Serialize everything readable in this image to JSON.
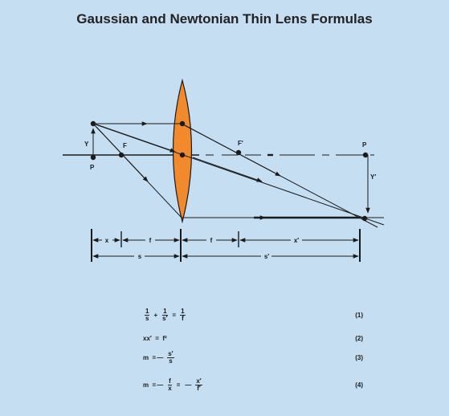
{
  "title": "Gaussian and Newtonian Thin Lens Formulas",
  "colors": {
    "background": "#c6def1",
    "lens": "#f08a2c",
    "ink": "#1a1a1a"
  },
  "diagram": {
    "labels": {
      "object_height": "Y",
      "object_point": "P",
      "front_focus": "F",
      "rear_focus": "F′",
      "image_point": "P",
      "image_height": "Y′"
    },
    "dimensions": {
      "x": "x",
      "f1": "f",
      "f2": "f",
      "x_prime": "x′",
      "s": "s",
      "s_prime": "s′"
    }
  },
  "formulas": [
    {
      "number": "(1)",
      "parts": [
        "1",
        "s",
        "+",
        "1",
        "s′",
        "=",
        "1",
        "f"
      ]
    },
    {
      "number": "(2)",
      "text": "xx′  =  f²"
    },
    {
      "number": "(3)",
      "lhs": "m  =",
      "sign": "—",
      "num": "s′",
      "den": "s"
    },
    {
      "number": "(4)",
      "lhs": "m  =",
      "sign1": "—",
      "num1": "f",
      "den1": "x",
      "mid": "=",
      "sign2": "—",
      "num2": "x′",
      "den2": "f′"
    }
  ]
}
